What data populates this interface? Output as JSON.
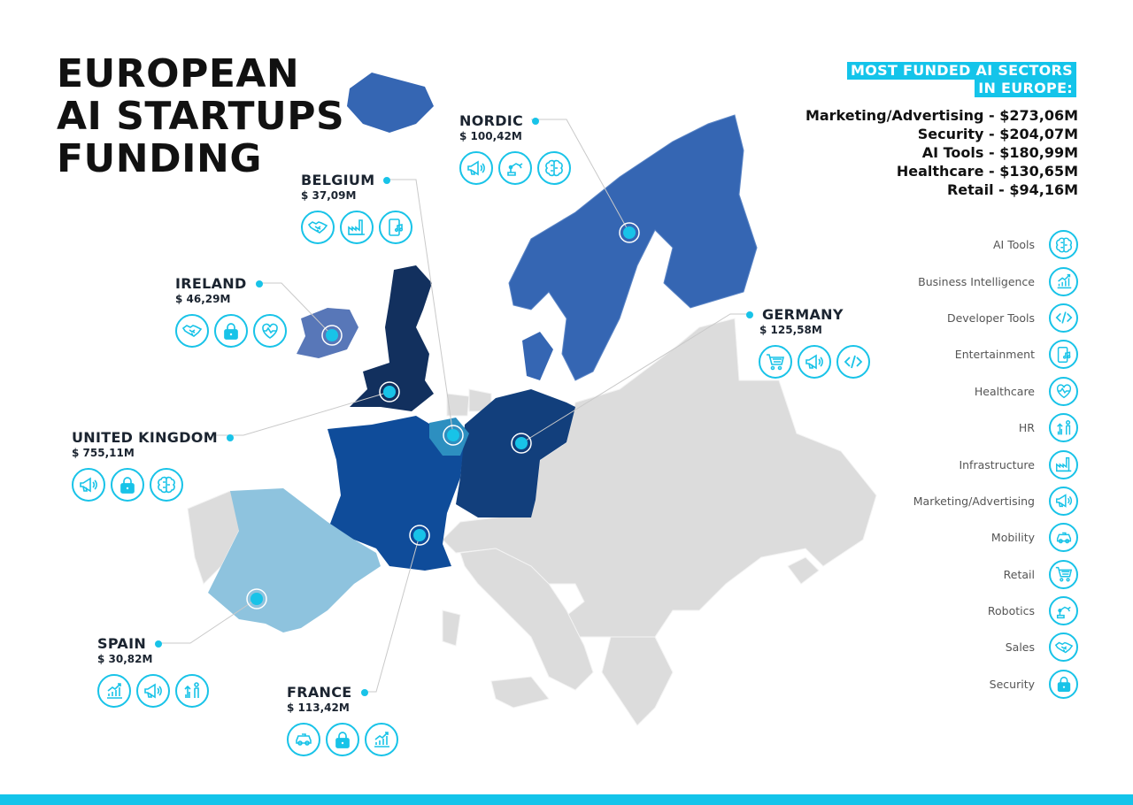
{
  "title": {
    "line1": "EUROPEAN",
    "line2": "AI STARTUPS",
    "line3": "FUNDING"
  },
  "sectors": {
    "heading_line1": "MOST FUNDED AI SECTORS",
    "heading_line2": "IN EUROPE:",
    "items": [
      "Marketing/Advertising - $273,06M",
      "Security - $204,07M",
      "AI Tools - $180,99M",
      "Healthcare - $130,65M",
      "Retail - $94,16M"
    ]
  },
  "legend": [
    {
      "label": "AI Tools",
      "icon": "brain-icon"
    },
    {
      "label": "Business Intelligence",
      "icon": "bar-chart-icon"
    },
    {
      "label": "Developer Tools",
      "icon": "code-icon"
    },
    {
      "label": "Entertainment",
      "icon": "phone-music-icon"
    },
    {
      "label": "Healthcare",
      "icon": "heart-pulse-icon"
    },
    {
      "label": "HR",
      "icon": "people-growth-icon"
    },
    {
      "label": "Infrastructure",
      "icon": "factory-icon"
    },
    {
      "label": "Marketing/Advertising",
      "icon": "megaphone-icon"
    },
    {
      "label": "Mobility",
      "icon": "car-icon"
    },
    {
      "label": "Retail",
      "icon": "cart-icon"
    },
    {
      "label": "Robotics",
      "icon": "robot-arm-icon"
    },
    {
      "label": "Sales",
      "icon": "handshake-icon"
    },
    {
      "label": "Security",
      "icon": "lock-icon"
    }
  ],
  "countries": {
    "nordic": {
      "name": "NORDIC",
      "amount": "$ 100,42M",
      "icons": [
        "megaphone-icon",
        "robot-arm-icon",
        "brain-icon"
      ]
    },
    "belgium": {
      "name": "BELGIUM",
      "amount": "$ 37,09M",
      "icons": [
        "handshake-icon",
        "factory-icon",
        "phone-music-icon"
      ]
    },
    "ireland": {
      "name": "IRELAND",
      "amount": "$ 46,29M",
      "icons": [
        "handshake-icon",
        "lock-icon",
        "heart-pulse-icon"
      ]
    },
    "germany": {
      "name": "GERMANY",
      "amount": "$ 125,58M",
      "icons": [
        "cart-icon",
        "megaphone-icon",
        "code-icon"
      ]
    },
    "united_kingdom": {
      "name": "UNITED KINGDOM",
      "amount": "$ 755,11M",
      "icons": [
        "megaphone-icon",
        "lock-icon",
        "brain-icon"
      ]
    },
    "spain": {
      "name": "SPAIN",
      "amount": "$ 30,82M",
      "icons": [
        "bar-chart-icon",
        "megaphone-icon",
        "people-growth-icon"
      ]
    },
    "france": {
      "name": "FRANCE",
      "amount": "$ 113,42M",
      "icons": [
        "car-icon",
        "lock-icon",
        "bar-chart-icon"
      ]
    }
  },
  "colors": {
    "accent": "#14c4ea",
    "uk": "#12305e",
    "germany": "#123f7c",
    "france": "#0f4c9a",
    "nordic": "#3566b3",
    "ireland": "#5877b8",
    "spain": "#8ec3de",
    "belgium": "#2d8fc0",
    "other": "#dcdcdc"
  }
}
